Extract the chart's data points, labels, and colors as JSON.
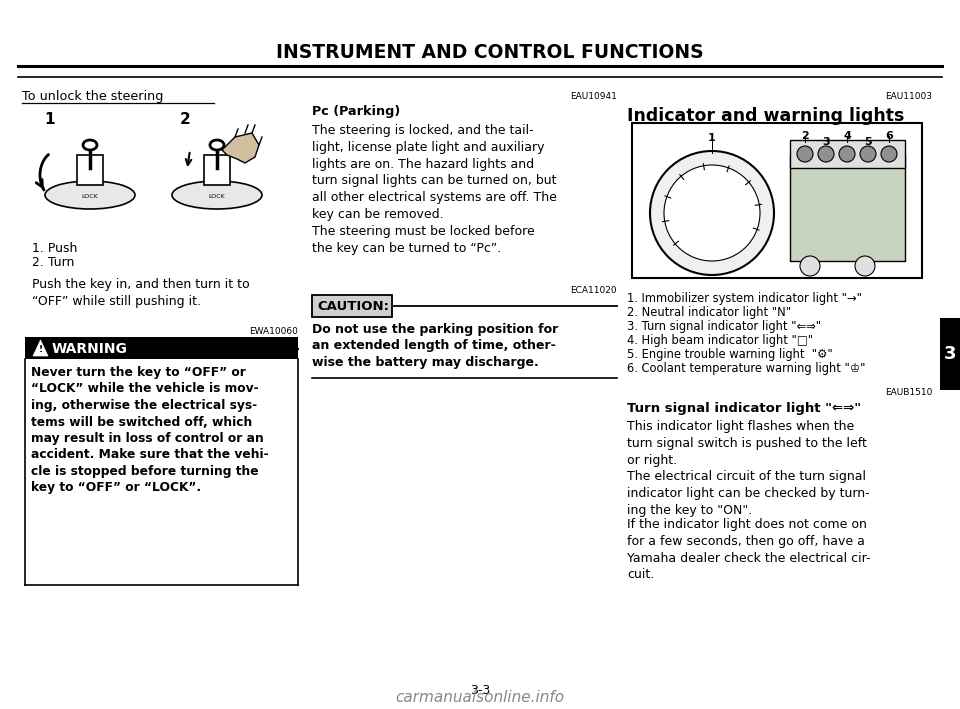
{
  "bg_color": "#ffffff",
  "header_title": "INSTRUMENT AND CONTROL FUNCTIONS",
  "page_num": "3-3",
  "tab_label": "3",
  "left": {
    "unlock_title": "To unlock the steering",
    "step1": "1",
    "step2": "2",
    "caption1": "1. Push",
    "caption2": "2. Turn",
    "body": "Push the key in, and then turn it to\n“OFF” while still pushing it.",
    "warn_ref": "EWA10060",
    "warn_title": "WARNING",
    "warn_body": "Never turn the key to “OFF” or\n“LOCK” while the vehicle is mov-\ning, otherwise the electrical sys-\ntems will be switched off, which\nmay result in loss of control or an\naccident. Make sure that the vehi-\ncle is stopped before turning the\nkey to “OFF” or “LOCK”."
  },
  "mid": {
    "park_ref": "EAU10941",
    "park_heading": "Pᴄ (Parking)",
    "park_body": "The steering is locked, and the tail-\nlight, license plate light and auxiliary\nlights are on. The hazard lights and\nturn signal lights can be turned on, but\nall other electrical systems are off. The\nkey can be removed.\nThe steering must be locked before\nthe key can be turned to “Pᴄ”.",
    "caution_ref": "ECA11020",
    "caution_title": "CAUTION:",
    "caution_body": "Do not use the parking position for\nan extended length of time, other-\nwise the battery may discharge."
  },
  "right": {
    "ind_ref": "EAU11003",
    "ind_title": "Indicator and warning lights",
    "ind_labels": [
      "1. Immobilizer system indicator light \"→\"",
      "2. Neutral indicator light \"N\"",
      "3. Turn signal indicator light \"⇐⇒\"",
      "4. High beam indicator light \"□\"",
      "5. Engine trouble warning light  \"⚙\"",
      "6. Coolant temperature warning light \"♔\""
    ],
    "turn_ref": "EAUB1510",
    "turn_title": "Turn signal indicator light \"⇐⇒\"",
    "turn_p1": "This indicator light flashes when the\nturn signal switch is pushed to the left\nor right.",
    "turn_p2": "The electrical circuit of the turn signal\nindicator light can be checked by turn-\ning the key to \"ON\".",
    "turn_p3": "If the indicator light does not come on\nfor a few seconds, then go off, have a\nYamaha dealer check the electrical cir-\ncuit."
  }
}
